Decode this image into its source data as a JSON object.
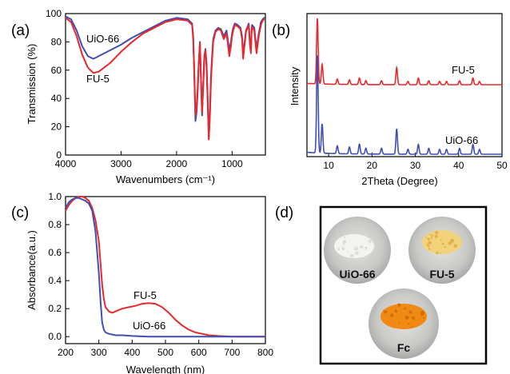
{
  "panels": {
    "a": "(a)",
    "b": "(b)",
    "c": "(c)",
    "d": "(d)"
  },
  "colors": {
    "red": "#e8282b",
    "blue": "#3f4fb4",
    "axis": "#000000"
  },
  "chart_data": [
    {
      "id": "a",
      "type": "line",
      "xlabel": "Wavenumbers (cm⁻¹)",
      "ylabel": "Transmission (%)",
      "xlim": [
        4000,
        400
      ],
      "ylim": [
        0,
        100
      ],
      "xticks": [
        4000,
        3000,
        2000,
        1000
      ],
      "yticks": [
        0,
        20,
        40,
        60,
        80,
        100
      ],
      "annotations": [
        "UiO-66",
        "FU-5"
      ],
      "series": [
        {
          "name": "UiO-66",
          "color": "#3f4fb4",
          "x": [
            4000,
            3900,
            3800,
            3700,
            3600,
            3500,
            3400,
            3300,
            3200,
            3100,
            3000,
            2800,
            2600,
            2400,
            2200,
            2000,
            1800,
            1720,
            1700,
            1680,
            1660,
            1640,
            1620,
            1600,
            1580,
            1560,
            1540,
            1520,
            1500,
            1480,
            1460,
            1440,
            1420,
            1400,
            1380,
            1360,
            1340,
            1300,
            1250,
            1200,
            1150,
            1100,
            1050,
            1020,
            1000,
            980,
            950,
            900,
            850,
            820,
            800,
            780,
            750,
            700,
            680,
            660,
            650,
            640,
            620,
            600,
            560,
            520,
            480,
            450,
            420,
            400
          ],
          "y": [
            98,
            96,
            88,
            77,
            70,
            68,
            70,
            72,
            74,
            76,
            78,
            83,
            87,
            91,
            95,
            97,
            96,
            93,
            84,
            56,
            24,
            30,
            45,
            65,
            80,
            55,
            28,
            48,
            70,
            75,
            65,
            40,
            12,
            30,
            55,
            70,
            82,
            88,
            90,
            89,
            84,
            88,
            74,
            80,
            86,
            90,
            93,
            92,
            90,
            84,
            70,
            78,
            88,
            93,
            80,
            74,
            87,
            92,
            91,
            90,
            75,
            86,
            94,
            96,
            97,
            97
          ]
        },
        {
          "name": "FU-5",
          "color": "#e8282b",
          "x": [
            4000,
            3900,
            3800,
            3700,
            3600,
            3500,
            3400,
            3300,
            3200,
            3100,
            3000,
            2800,
            2600,
            2400,
            2200,
            2000,
            1800,
            1720,
            1700,
            1680,
            1660,
            1640,
            1620,
            1600,
            1580,
            1560,
            1540,
            1520,
            1500,
            1480,
            1460,
            1440,
            1420,
            1400,
            1380,
            1360,
            1340,
            1300,
            1250,
            1200,
            1150,
            1100,
            1050,
            1020,
            1000,
            980,
            950,
            900,
            850,
            820,
            800,
            780,
            750,
            700,
            680,
            660,
            650,
            640,
            620,
            600,
            560,
            520,
            480,
            450,
            420,
            400
          ],
          "y": [
            97,
            94,
            84,
            71,
            62,
            58,
            59,
            62,
            65,
            69,
            73,
            80,
            86,
            90,
            94,
            96,
            95,
            92,
            82,
            58,
            28,
            34,
            48,
            66,
            79,
            54,
            30,
            50,
            69,
            74,
            62,
            38,
            11,
            28,
            52,
            67,
            80,
            87,
            89,
            88,
            82,
            86,
            70,
            77,
            84,
            88,
            92,
            91,
            89,
            82,
            68,
            76,
            87,
            92,
            78,
            72,
            85,
            90,
            90,
            88,
            72,
            84,
            92,
            95,
            96,
            96
          ]
        }
      ]
    },
    {
      "id": "b",
      "type": "line",
      "xlabel": "2Theta (Degree)",
      "ylabel": "Intensity",
      "xlim": [
        5,
        50
      ],
      "xticks": [
        10,
        20,
        30,
        40,
        50
      ],
      "annotations": [
        "FU-5",
        "UiO-66"
      ],
      "peaks": [
        {
          "x": 7.4,
          "h": 1.0
        },
        {
          "x": 8.5,
          "h": 0.3
        },
        {
          "x": 12.0,
          "h": 0.08
        },
        {
          "x": 14.8,
          "h": 0.07
        },
        {
          "x": 17.1,
          "h": 0.1
        },
        {
          "x": 18.6,
          "h": 0.06
        },
        {
          "x": 22.2,
          "h": 0.06
        },
        {
          "x": 25.7,
          "h": 0.26
        },
        {
          "x": 28.3,
          "h": 0.05
        },
        {
          "x": 30.7,
          "h": 0.1
        },
        {
          "x": 33.1,
          "h": 0.06
        },
        {
          "x": 35.6,
          "h": 0.05
        },
        {
          "x": 37.2,
          "h": 0.05
        },
        {
          "x": 40.2,
          "h": 0.06
        },
        {
          "x": 43.3,
          "h": 0.1
        },
        {
          "x": 44.8,
          "h": 0.05
        }
      ],
      "series": [
        {
          "name": "FU-5",
          "color": "#e8282b",
          "offset": 1.0
        },
        {
          "name": "UiO-66",
          "color": "#3f4fb4",
          "offset": 0.0
        }
      ]
    },
    {
      "id": "c",
      "type": "line",
      "xlabel": "Wavelength (nm)",
      "ylabel": "Absorbance(a.u.)",
      "xlim": [
        200,
        800
      ],
      "ylim": [
        -0.05,
        1.0
      ],
      "xticks": [
        200,
        300,
        400,
        500,
        600,
        700,
        800
      ],
      "yticks": [
        0.0,
        0.2,
        0.4,
        0.6,
        0.8,
        1.0
      ],
      "annotations": [
        "FU-5",
        "UiO-66"
      ],
      "series": [
        {
          "name": "FU-5",
          "color": "#e8282b",
          "x": [
            200,
            210,
            220,
            230,
            240,
            250,
            260,
            270,
            280,
            290,
            300,
            305,
            310,
            315,
            320,
            330,
            340,
            350,
            370,
            390,
            410,
            430,
            450,
            470,
            490,
            510,
            530,
            550,
            570,
            590,
            610,
            630,
            660,
            700,
            750,
            800
          ],
          "y": [
            0.9,
            0.94,
            0.97,
            0.99,
            1.0,
            1.0,
            0.99,
            0.97,
            0.92,
            0.83,
            0.68,
            0.52,
            0.37,
            0.27,
            0.21,
            0.18,
            0.17,
            0.18,
            0.2,
            0.21,
            0.22,
            0.235,
            0.24,
            0.235,
            0.21,
            0.17,
            0.12,
            0.08,
            0.05,
            0.03,
            0.02,
            0.01,
            0.005,
            0.0,
            0.0,
            0.0
          ]
        },
        {
          "name": "UiO-66",
          "color": "#3f4fb4",
          "x": [
            200,
            210,
            220,
            230,
            240,
            250,
            260,
            270,
            280,
            290,
            300,
            305,
            310,
            315,
            320,
            330,
            340,
            350,
            370,
            400,
            450,
            500,
            550,
            600,
            650,
            700,
            750,
            800
          ],
          "y": [
            0.92,
            0.96,
            0.98,
            0.99,
            0.99,
            0.98,
            0.97,
            0.95,
            0.9,
            0.75,
            0.45,
            0.25,
            0.1,
            0.05,
            0.03,
            0.02,
            0.015,
            0.01,
            0.01,
            0.005,
            0.0,
            0.0,
            0.0,
            0.0,
            0.0,
            0.0,
            0.0,
            0.0
          ]
        }
      ]
    }
  ],
  "photos": {
    "items": [
      {
        "label": "UiO-66",
        "powder": "#f3f3f1",
        "grain": "#dcdcd8"
      },
      {
        "label": "FU-5",
        "powder": "#f2d27a",
        "grain": "#e2b24a"
      },
      {
        "label": "Fc",
        "powder": "#f08a12",
        "grain": "#d46d08"
      }
    ]
  }
}
